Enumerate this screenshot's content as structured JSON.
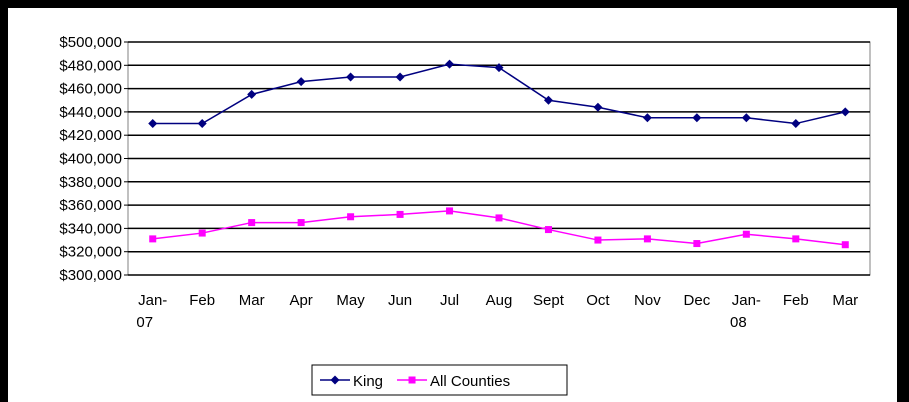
{
  "chart_data": {
    "type": "line",
    "categories": [
      "Jan-07",
      "Feb",
      "Mar",
      "Apr",
      "May",
      "Jun",
      "Jul",
      "Aug",
      "Sept",
      "Oct",
      "Nov",
      "Dec",
      "Jan-08",
      "Feb",
      "Mar"
    ],
    "series": [
      {
        "name": "King",
        "color": "#000080",
        "marker": "diamond",
        "values": [
          430000,
          430000,
          455000,
          466000,
          470000,
          470000,
          481000,
          478000,
          450000,
          444000,
          435000,
          435000,
          435000,
          430000,
          440000
        ]
      },
      {
        "name": "All Counties",
        "color": "#ff00ff",
        "marker": "square",
        "values": [
          331000,
          336000,
          345000,
          345000,
          350000,
          352000,
          355000,
          349000,
          339000,
          330000,
          331000,
          327000,
          335000,
          331000,
          326000
        ]
      }
    ],
    "ylim": [
      300000,
      500000
    ],
    "yticks": [
      {
        "value": 300000,
        "label": "$300,000"
      },
      {
        "value": 320000,
        "label": "$320,000"
      },
      {
        "value": 340000,
        "label": "$340,000"
      },
      {
        "value": 360000,
        "label": "$360,000"
      },
      {
        "value": 380000,
        "label": "$380,000"
      },
      {
        "value": 400000,
        "label": "$400,000"
      },
      {
        "value": 420000,
        "label": "$420,000"
      },
      {
        "value": 440000,
        "label": "$440,000"
      },
      {
        "value": 460000,
        "label": "$460,000"
      },
      {
        "value": 480000,
        "label": "$480,000"
      },
      {
        "value": 500000,
        "label": "$500,000"
      }
    ],
    "grid": true,
    "legend": "bottom"
  }
}
